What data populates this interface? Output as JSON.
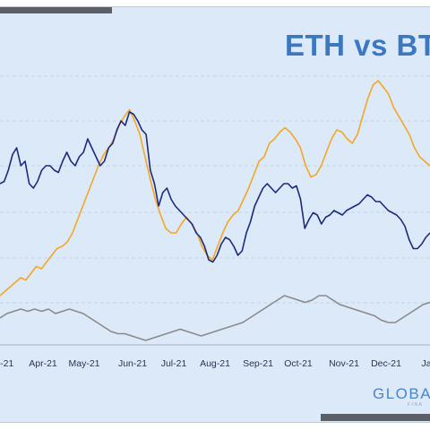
{
  "chart_data": {
    "type": "line",
    "title": "ETH vs BT",
    "x_labels": [
      "r-21",
      "Apr-21",
      "May-21",
      "Jun-21",
      "Jul-21",
      "Aug-21",
      "Sep-21",
      "Oct-21",
      "Nov-21",
      "Dec-21",
      "Ja"
    ],
    "grid": true,
    "legend": "none",
    "series": [
      {
        "color": "#1e2a7a",
        "values": [
          0.62,
          0.63,
          0.68,
          0.75,
          0.78,
          0.7,
          0.72,
          0.62,
          0.6,
          0.63,
          0.68,
          0.7,
          0.7,
          0.68,
          0.67,
          0.72,
          0.76,
          0.72,
          0.7,
          0.74,
          0.76,
          0.82,
          0.78,
          0.74,
          0.7,
          0.72,
          0.78,
          0.8,
          0.86,
          0.9,
          0.88,
          0.94,
          0.93,
          0.9,
          0.86,
          0.84,
          0.68,
          0.62,
          0.52,
          0.58,
          0.6,
          0.55,
          0.52,
          0.5,
          0.48,
          0.46,
          0.44,
          0.4,
          0.38,
          0.34,
          0.28,
          0.27,
          0.3,
          0.35,
          0.38,
          0.37,
          0.34,
          0.3,
          0.32,
          0.4,
          0.45,
          0.52,
          0.56,
          0.6,
          0.62,
          0.6,
          0.58,
          0.6,
          0.62,
          0.62,
          0.6,
          0.61,
          0.55,
          0.42,
          0.46,
          0.49,
          0.48,
          0.44,
          0.47,
          0.48,
          0.5,
          0.49,
          0.48,
          0.5,
          0.51,
          0.52,
          0.53,
          0.55,
          0.57,
          0.56,
          0.54,
          0.54,
          0.52,
          0.5,
          0.49,
          0.48,
          0.46,
          0.43,
          0.37,
          0.33,
          0.33,
          0.35,
          0.38,
          0.4
        ]
      },
      {
        "color": "#f5a623",
        "values": [
          0.12,
          0.14,
          0.16,
          0.18,
          0.2,
          0.19,
          0.22,
          0.25,
          0.24,
          0.27,
          0.3,
          0.33,
          0.34,
          0.36,
          0.4,
          0.46,
          0.52,
          0.58,
          0.64,
          0.7,
          0.75,
          0.78,
          0.82,
          0.88,
          0.92,
          0.95,
          0.9,
          0.84,
          0.74,
          0.64,
          0.55,
          0.48,
          0.42,
          0.4,
          0.4,
          0.44,
          0.47,
          0.44,
          0.4,
          0.34,
          0.3,
          0.28,
          0.34,
          0.4,
          0.45,
          0.48,
          0.5,
          0.55,
          0.6,
          0.66,
          0.72,
          0.74,
          0.8,
          0.82,
          0.85,
          0.87,
          0.85,
          0.82,
          0.78,
          0.7,
          0.65,
          0.66,
          0.7,
          0.76,
          0.82,
          0.86,
          0.85,
          0.82,
          0.8,
          0.84,
          0.92,
          1.0,
          1.06,
          1.08,
          1.05,
          1.02,
          0.96,
          0.92,
          0.88,
          0.84,
          0.78,
          0.74,
          0.72,
          0.7
        ]
      },
      {
        "color": "#8a8a8a",
        "values": [
          0.02,
          0.04,
          0.05,
          0.06,
          0.05,
          0.06,
          0.05,
          0.06,
          0.04,
          0.05,
          0.06,
          0.05,
          0.04,
          0.02,
          0.0,
          -0.02,
          -0.04,
          -0.05,
          -0.05,
          -0.06,
          -0.07,
          -0.08,
          -0.07,
          -0.06,
          -0.05,
          -0.04,
          -0.03,
          -0.04,
          -0.05,
          -0.06,
          -0.05,
          -0.04,
          -0.03,
          -0.02,
          -0.01,
          0.0,
          0.02,
          0.04,
          0.06,
          0.08,
          0.1,
          0.12,
          0.11,
          0.1,
          0.09,
          0.1,
          0.12,
          0.12,
          0.1,
          0.08,
          0.07,
          0.06,
          0.05,
          0.04,
          0.03,
          0.01,
          0.0,
          0.0,
          0.02,
          0.04,
          0.06,
          0.08,
          0.09
        ]
      }
    ]
  },
  "logo": {
    "text": "GLOBA",
    "sub": "FINA"
  }
}
